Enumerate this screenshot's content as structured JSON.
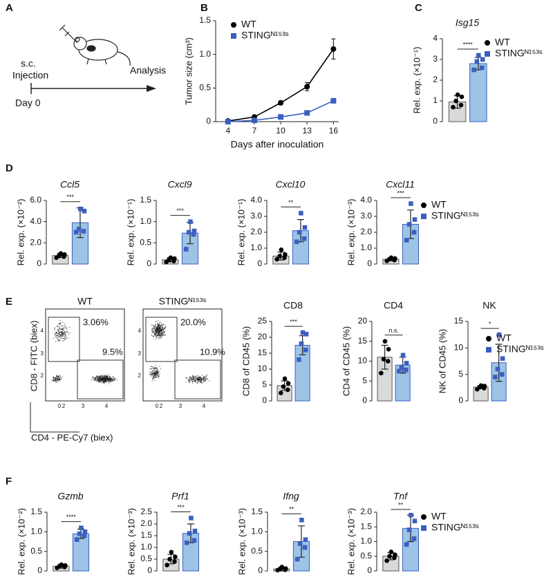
{
  "panel_labels": [
    "A",
    "B",
    "C",
    "D",
    "E",
    "F"
  ],
  "schematic": {
    "injection": [
      "s.c.",
      "Injection"
    ],
    "analysis": "Analysis",
    "day": "Day 0"
  },
  "flow": {
    "plots": [
      {
        "title": "WT",
        "gates": [
          "3.06%",
          "9.5%"
        ]
      },
      {
        "title": "STINGᴺ¹⁵³ˢ",
        "gates": [
          "20.0%",
          "10.9%"
        ]
      }
    ],
    "ylabel": "CD8 - FITC (biex)",
    "xlabel": "CD4 - PE-Cy7 (biex)",
    "ytick_labels": [
      "4",
      "3",
      "2"
    ],
    "xtick_labels": [
      "0",
      "2",
      "3",
      "4"
    ]
  },
  "chart_data": [
    {
      "type": "line",
      "ylabel": "Tumor size (cm³)",
      "xlabel": "Days after inoculation",
      "x": [
        4,
        7,
        10,
        13,
        16
      ],
      "xlim": [
        2.6,
        16.6
      ],
      "xticks": [
        4,
        7,
        10,
        13,
        16
      ],
      "ylim": [
        0,
        1.5
      ],
      "yticks": [
        0,
        0.5,
        {
          "value": 1,
          "label": "1.0"
        },
        1.5
      ],
      "legend": "upper left",
      "series": [
        {
          "name": "WT",
          "color": "#000000",
          "marker": "circle",
          "values": [
            0.01,
            0.07,
            0.28,
            0.52,
            1.08
          ],
          "errors": [
            0.01,
            0.02,
            0.03,
            0.06,
            0.15
          ]
        },
        {
          "name": "STINGᴺ¹⁵³ˢ",
          "color": "#3b5fc0",
          "marker": "square",
          "values": [
            0.0,
            0.02,
            0.07,
            0.13,
            0.31
          ],
          "errors": [
            0,
            0.01,
            0.01,
            0.015,
            0.02
          ]
        }
      ]
    },
    {
      "type": "bar",
      "title": "Isg15",
      "ylabel": "Rel. exp. (×10⁻¹)",
      "ylim": [
        0,
        4
      ],
      "yticks": [
        0,
        1,
        2,
        3,
        4
      ],
      "significance": "****",
      "legend": "right",
      "series": [
        {
          "name": "WT",
          "color": "#d9d9d9",
          "point_color": "#000000",
          "marker": "circle",
          "values": [
            0.95
          ],
          "errors": [
            0.3
          ],
          "points": [
            0.7,
            0.8,
            1.0,
            1.2,
            1.3
          ]
        },
        {
          "name": "STINGᴺ¹⁵³ˢ",
          "color": "#9dc3e6",
          "point_color": "#3b5fc0",
          "marker": "square",
          "values": [
            2.8
          ],
          "errors": [
            0.3
          ],
          "points": [
            2.5,
            2.6,
            2.9,
            3.0,
            3.2
          ]
        }
      ]
    },
    {
      "type": "bar",
      "title": "Ccl5",
      "ylabel": "Rel. exp. (×10⁻²)",
      "ylim": [
        0,
        6
      ],
      "yticks": [
        0,
        {
          "value": 2,
          "label": "2.0"
        },
        {
          "value": 4,
          "label": "4.0"
        },
        {
          "value": 6,
          "label": "6.0"
        }
      ],
      "significance": "***",
      "series": [
        {
          "color": "#d9d9d9",
          "point_color": "#000000",
          "marker": "circle",
          "values": [
            0.8
          ],
          "errors": [
            0.2
          ],
          "points": [
            0.6,
            0.7,
            0.8,
            0.9,
            1.0
          ]
        },
        {
          "color": "#9dc3e6",
          "point_color": "#3b5fc0",
          "marker": "square",
          "values": [
            3.9
          ],
          "errors": [
            1.4
          ],
          "points": [
            3.0,
            3.1,
            3.3,
            5.0,
            5.2
          ]
        }
      ]
    },
    {
      "type": "bar",
      "title": "Cxcl9",
      "ylabel": "Rel. exp. (×10⁻¹)",
      "ylim": [
        0,
        1.5
      ],
      "yticks": [
        0,
        0.5,
        {
          "value": 1,
          "label": "1.0"
        },
        1.5
      ],
      "significance": "***",
      "series": [
        {
          "color": "#d9d9d9",
          "point_color": "#000000",
          "marker": "circle",
          "values": [
            0.1
          ],
          "errors": [
            0.05
          ],
          "points": [
            0.05,
            0.07,
            0.1,
            0.13,
            0.15
          ]
        },
        {
          "color": "#9dc3e6",
          "point_color": "#3b5fc0",
          "marker": "square",
          "values": [
            0.73
          ],
          "errors": [
            0.25
          ],
          "points": [
            0.35,
            0.7,
            0.75,
            0.78,
            1.0
          ]
        }
      ]
    },
    {
      "type": "bar",
      "title": "Cxcl10",
      "ylabel": "Rel. exp. (×10⁻¹)",
      "ylim": [
        0,
        4
      ],
      "yticks": [
        0,
        {
          "value": 1,
          "label": "1.0"
        },
        {
          "value": 2,
          "label": "2.0"
        },
        {
          "value": 3,
          "label": "3.0"
        },
        {
          "value": 4,
          "label": "4.0"
        }
      ],
      "significance": "**",
      "series": [
        {
          "color": "#d9d9d9",
          "point_color": "#000000",
          "marker": "circle",
          "values": [
            0.5
          ],
          "errors": [
            0.25
          ],
          "points": [
            0.3,
            0.4,
            0.5,
            0.6,
            0.9
          ]
        },
        {
          "color": "#9dc3e6",
          "point_color": "#3b5fc0",
          "marker": "square",
          "values": [
            2.1
          ],
          "errors": [
            0.7
          ],
          "points": [
            1.4,
            1.6,
            2.0,
            2.3,
            3.2
          ]
        }
      ]
    },
    {
      "type": "bar",
      "title": "Cxcl11",
      "ylabel": "Rel. exp. (×10⁻³)",
      "ylim": [
        0,
        4
      ],
      "yticks": [
        0,
        {
          "value": 1,
          "label": "1.0"
        },
        {
          "value": 2,
          "label": "2.0"
        },
        {
          "value": 3,
          "label": "3.0"
        },
        {
          "value": 4,
          "label": "4.0"
        }
      ],
      "significance": "***",
      "legend": "right",
      "series": [
        {
          "name": "WT",
          "color": "#d9d9d9",
          "point_color": "#000000",
          "marker": "circle",
          "values": [
            0.3
          ],
          "errors": [
            0.1
          ],
          "points": [
            0.2,
            0.25,
            0.3,
            0.35,
            0.4
          ]
        },
        {
          "name": "STINGᴺ¹⁵³ˢ",
          "color": "#9dc3e6",
          "point_color": "#3b5fc0",
          "marker": "square",
          "values": [
            2.5
          ],
          "errors": [
            0.9
          ],
          "points": [
            1.5,
            2.0,
            2.5,
            2.8,
            3.8
          ]
        }
      ]
    },
    {
      "type": "bar",
      "title": "CD8",
      "ylabel": "CD8 of CD45 (%)",
      "ylim": [
        0,
        25
      ],
      "yticks": [
        0,
        5,
        10,
        15,
        20,
        25
      ],
      "significance": "***",
      "series": [
        {
          "color": "#d9d9d9",
          "point_color": "#000000",
          "marker": "circle",
          "values": [
            4.8
          ],
          "errors": [
            1.5
          ],
          "points": [
            2.5,
            3.5,
            4.5,
            5.5,
            7
          ]
        },
        {
          "color": "#9dc3e6",
          "point_color": "#3b5fc0",
          "marker": "square",
          "values": [
            17.5
          ],
          "errors": [
            3
          ],
          "points": [
            13,
            16,
            18,
            21,
            21.5
          ]
        }
      ]
    },
    {
      "type": "bar",
      "title": "CD4",
      "ylabel": "CD4 of CD45 (%)",
      "ylim": [
        0,
        20
      ],
      "yticks": [
        0,
        5,
        10,
        15,
        20
      ],
      "significance": "n.s.",
      "series": [
        {
          "color": "#d9d9d9",
          "point_color": "#000000",
          "marker": "circle",
          "values": [
            11
          ],
          "errors": [
            3
          ],
          "points": [
            7,
            10,
            10.5,
            13,
            15
          ]
        },
        {
          "color": "#9dc3e6",
          "point_color": "#3b5fc0",
          "marker": "square",
          "values": [
            9
          ],
          "errors": [
            2
          ],
          "points": [
            7.5,
            7.8,
            8.5,
            9.5,
            11.5
          ]
        }
      ]
    },
    {
      "type": "bar",
      "title": "NK",
      "ylabel": "NK of CD45 (%)",
      "ylim": [
        0,
        15
      ],
      "yticks": [
        0,
        5,
        10,
        15
      ],
      "significance": "*",
      "legend": "right",
      "series": [
        {
          "name": "WT",
          "color": "#d9d9d9",
          "point_color": "#000000",
          "marker": "circle",
          "values": [
            2.6
          ],
          "errors": [
            0.3
          ],
          "points": [
            2.2,
            2.4,
            2.6,
            2.8,
            2.9
          ]
        },
        {
          "name": "STINGᴺ¹⁵³ˢ",
          "color": "#9dc3e6",
          "point_color": "#3b5fc0",
          "marker": "square",
          "values": [
            7.2
          ],
          "errors": [
            3.5
          ],
          "points": [
            4.5,
            5,
            6,
            8,
            12.5
          ]
        }
      ]
    },
    {
      "type": "bar",
      "title": "Gzmb",
      "ylabel": "Rel. exp. (×10⁻²)",
      "ylim": [
        0,
        1.5
      ],
      "yticks": [
        0,
        0.5,
        {
          "value": 1,
          "label": "1.0"
        },
        1.5
      ],
      "significance": "****",
      "series": [
        {
          "color": "#d9d9d9",
          "point_color": "#000000",
          "marker": "circle",
          "values": [
            0.12
          ],
          "errors": [
            0.05
          ],
          "points": [
            0.08,
            0.1,
            0.12,
            0.14,
            0.16
          ]
        },
        {
          "color": "#9dc3e6",
          "point_color": "#3b5fc0",
          "marker": "square",
          "values": [
            0.95
          ],
          "errors": [
            0.12
          ],
          "points": [
            0.8,
            0.9,
            0.95,
            1.0,
            1.1
          ]
        }
      ]
    },
    {
      "type": "bar",
      "title": "Prf1",
      "ylabel": "Rel. exp. (×10⁻³)",
      "ylim": [
        0,
        2.5
      ],
      "yticks": [
        0,
        0.5,
        {
          "value": 1,
          "label": "1.0"
        },
        1.5,
        {
          "value": 2,
          "label": "2.0"
        },
        2.5
      ],
      "significance": "***",
      "series": [
        {
          "color": "#d9d9d9",
          "point_color": "#000000",
          "marker": "circle",
          "values": [
            0.5
          ],
          "errors": [
            0.2
          ],
          "points": [
            0.25,
            0.4,
            0.5,
            0.6,
            0.8
          ]
        },
        {
          "color": "#9dc3e6",
          "point_color": "#3b5fc0",
          "marker": "square",
          "values": [
            1.6
          ],
          "errors": [
            0.4
          ],
          "points": [
            1.2,
            1.3,
            1.6,
            1.7,
            2.25
          ]
        }
      ]
    },
    {
      "type": "bar",
      "title": "Ifng",
      "ylabel": "Rel. exp. (×10⁻³)",
      "ylim": [
        0,
        1.5
      ],
      "yticks": [
        0,
        0.5,
        {
          "value": 1,
          "label": "1.0"
        },
        1.5
      ],
      "significance": "**",
      "series": [
        {
          "color": "#d9d9d9",
          "point_color": "#000000",
          "marker": "circle",
          "values": [
            0.05
          ],
          "errors": [
            0.05
          ],
          "points": [
            0.02,
            0.03,
            0.05,
            0.06,
            0.1
          ]
        },
        {
          "color": "#9dc3e6",
          "point_color": "#3b5fc0",
          "marker": "square",
          "values": [
            0.75
          ],
          "errors": [
            0.4
          ],
          "points": [
            0.3,
            0.6,
            0.7,
            0.8,
            1.3
          ]
        }
      ]
    },
    {
      "type": "bar",
      "title": "Tnf",
      "ylabel": "Rel. exp. (×10⁻³)",
      "ylim": [
        0,
        2
      ],
      "yticks": [
        0,
        0.5,
        {
          "value": 1,
          "label": "1.0"
        },
        1.5,
        {
          "value": 2,
          "label": "2.0"
        }
      ],
      "significance": "**",
      "legend": "right",
      "series": [
        {
          "name": "WT",
          "color": "#d9d9d9",
          "point_color": "#000000",
          "marker": "circle",
          "values": [
            0.5
          ],
          "errors": [
            0.12
          ],
          "points": [
            0.35,
            0.45,
            0.5,
            0.55,
            0.65
          ]
        },
        {
          "name": "STINGᴺ¹⁵³ˢ",
          "color": "#9dc3e6",
          "point_color": "#3b5fc0",
          "marker": "square",
          "values": [
            1.45
          ],
          "errors": [
            0.45
          ],
          "points": [
            0.9,
            1.1,
            1.4,
            1.7,
            1.9
          ]
        }
      ]
    }
  ]
}
